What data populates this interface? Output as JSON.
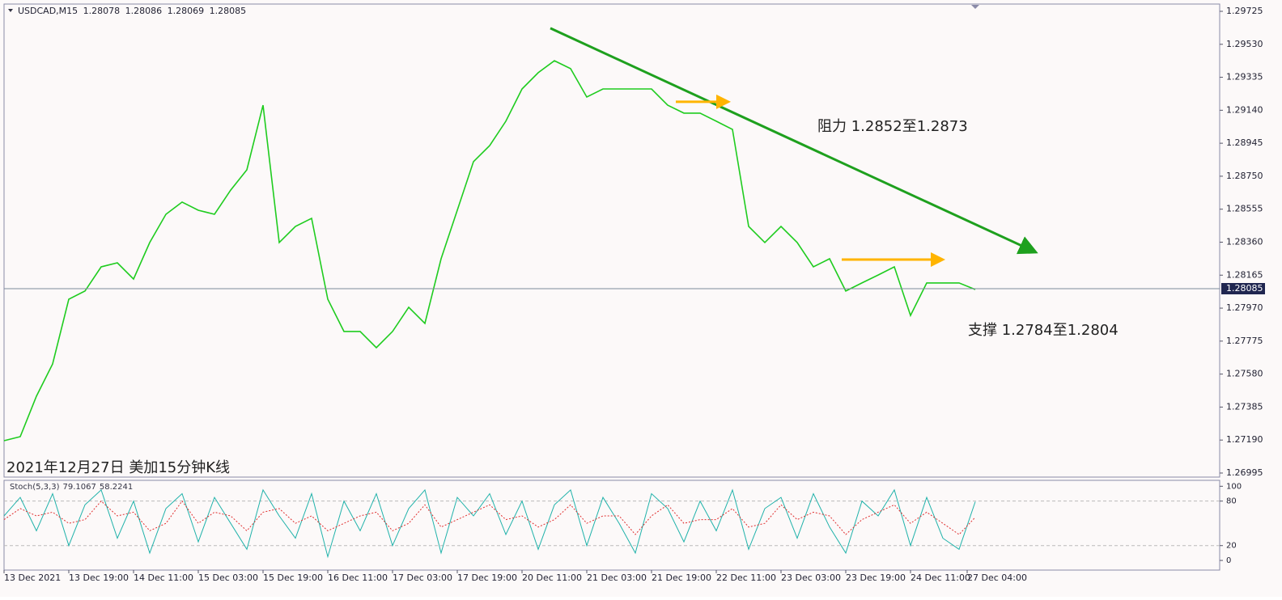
{
  "chart_data": [
    {
      "type": "line",
      "title": "USDCAD,M15",
      "ohlc": [
        1.28078,
        1.28086,
        1.28069,
        1.28085
      ],
      "x": [
        0,
        16,
        32,
        48,
        64,
        80,
        96,
        112,
        128,
        144,
        160,
        176,
        192,
        208,
        224,
        240,
        256,
        272,
        288,
        304,
        320,
        336,
        352,
        368,
        384,
        400,
        416,
        432,
        448,
        464,
        480,
        496,
        512,
        528,
        544,
        560,
        576,
        592,
        608,
        624,
        640,
        656,
        672,
        688,
        704,
        720,
        736,
        752,
        768,
        784,
        800,
        816,
        832,
        848,
        864,
        880,
        896,
        912,
        928,
        944,
        960
      ],
      "series": [
        {
          "color": "#1fcc1f",
          "values": [
            1.27186,
            1.2721,
            1.27449,
            1.2764,
            1.28023,
            1.28071,
            1.28214,
            1.28238,
            1.28142,
            1.28358,
            1.28525,
            1.28597,
            1.28549,
            1.28525,
            1.28668,
            1.28788,
            1.2917,
            1.28358,
            1.28453,
            1.28501,
            1.28023,
            1.27832,
            1.27832,
            1.27736,
            1.27832,
            1.27975,
            1.2788,
            1.28262,
            1.28549,
            1.28836,
            1.28931,
            1.29075,
            1.29266,
            1.29362,
            1.29433,
            1.29386,
            1.29218,
            1.29266,
            1.29266,
            1.29266,
            1.29266,
            1.2917,
            1.29123,
            1.29123,
            1.29075,
            1.29027,
            1.28453,
            1.28358,
            1.28453,
            1.28358,
            1.28214,
            1.28262,
            1.28071,
            1.28119,
            1.28166,
            1.28214,
            1.27927,
            1.28119,
            1.28119,
            1.28119,
            1.2808
          ]
        }
      ],
      "xlim": [
        0,
        1201.6
      ],
      "ylim": [
        1.26971,
        1.29768
      ],
      "yticks": [
        1.29725,
        {
          "value": 1.2953,
          "label": "1.29530"
        },
        1.29335,
        {
          "value": 1.2914,
          "label": "1.29140"
        },
        1.28945,
        {
          "value": 1.2875,
          "label": "1.28750"
        },
        1.28555,
        {
          "value": 1.2836,
          "label": "1.28360"
        },
        1.28165,
        {
          "value": 1.2797,
          "label": "1.27970"
        },
        1.27775,
        {
          "value": 1.2758,
          "label": "1.27580"
        },
        1.27385,
        {
          "value": 1.2719,
          "label": "1.27190"
        },
        1.26995
      ],
      "xticks": [
        {
          "value": 0,
          "label": "13 Dec 2021"
        },
        {
          "value": 64,
          "label": "13 Dec 19:00"
        },
        {
          "value": 128,
          "label": "14 Dec 11:00"
        },
        {
          "value": 192,
          "label": "15 Dec 03:00"
        },
        {
          "value": 256,
          "label": "15 Dec 19:00"
        },
        {
          "value": 320,
          "label": "16 Dec 11:00"
        },
        {
          "value": 384,
          "label": "17 Dec 03:00"
        },
        {
          "value": 448,
          "label": "17 Dec 19:00"
        },
        {
          "value": 512,
          "label": "20 Dec 11:00"
        },
        {
          "value": 576,
          "label": "21 Dec 03:00"
        },
        {
          "value": 640,
          "label": "21 Dec 19:00"
        },
        {
          "value": 704,
          "label": "22 Dec 11:00"
        },
        {
          "value": 768,
          "label": "23 Dec 03:00"
        },
        {
          "value": 832,
          "label": "23 Dec 19:00"
        },
        {
          "value": 896,
          "label": "24 Dec 11:00"
        },
        {
          "value": 952,
          "label": "27 Dec 04:00"
        }
      ],
      "current_price": 1.28085,
      "trendline": {
        "x": [
          540,
          1020
        ],
        "y": [
          1.29625,
          1.283
        ],
        "color": "#1ea01e"
      },
      "levels": [
        {
          "x": [
            664,
            716
          ],
          "y": 1.2919,
          "color": "#ffb400"
        },
        {
          "x": [
            828,
            928
          ],
          "y": 1.28257,
          "color": "#ffb400"
        }
      ],
      "annotations": [
        "阻力 1.2852至1.2873",
        "支撑 1.2784至1.2804"
      ],
      "caption": "2021年12月27日 美加15分钟K线"
    },
    {
      "type": "line",
      "title": "Stoch(5,3,3)",
      "x": [
        0,
        16,
        32,
        48,
        64,
        80,
        96,
        112,
        128,
        144,
        160,
        176,
        192,
        208,
        224,
        240,
        256,
        272,
        288,
        304,
        320,
        336,
        352,
        368,
        384,
        400,
        416,
        432,
        448,
        464,
        480,
        496,
        512,
        528,
        544,
        560,
        576,
        592,
        608,
        624,
        640,
        656,
        672,
        688,
        704,
        720,
        736,
        752,
        768,
        784,
        800,
        816,
        832,
        848,
        864,
        880,
        896,
        912,
        928,
        944,
        960
      ],
      "series": [
        {
          "color": "#20b2aa",
          "values": [
            60,
            85,
            40,
            90,
            20,
            75,
            95,
            30,
            80,
            10,
            70,
            90,
            25,
            85,
            50,
            15,
            95,
            60,
            30,
            90,
            5,
            80,
            40,
            90,
            20,
            70,
            95,
            10,
            85,
            60,
            90,
            35,
            80,
            15,
            75,
            95,
            20,
            85,
            50,
            10,
            90,
            70,
            25,
            80,
            40,
            95,
            15,
            70,
            85,
            30,
            90,
            45,
            10,
            80,
            60,
            95,
            20,
            85,
            30,
            15,
            79.1067
          ]
        },
        {
          "color": "#e03030",
          "values": [
            55,
            70,
            60,
            65,
            50,
            55,
            80,
            60,
            65,
            40,
            50,
            80,
            50,
            65,
            60,
            40,
            65,
            70,
            50,
            60,
            40,
            50,
            60,
            65,
            40,
            50,
            75,
            45,
            55,
            65,
            75,
            55,
            60,
            45,
            55,
            75,
            50,
            60,
            60,
            35,
            60,
            75,
            50,
            55,
            55,
            70,
            45,
            50,
            75,
            55,
            65,
            60,
            35,
            55,
            65,
            75,
            50,
            65,
            50,
            35,
            58.2241
          ]
        }
      ],
      "ylim": [
        -13,
        108
      ],
      "yticks": [
        0,
        20,
        80,
        100
      ],
      "levels": [
        20,
        80
      ]
    }
  ]
}
